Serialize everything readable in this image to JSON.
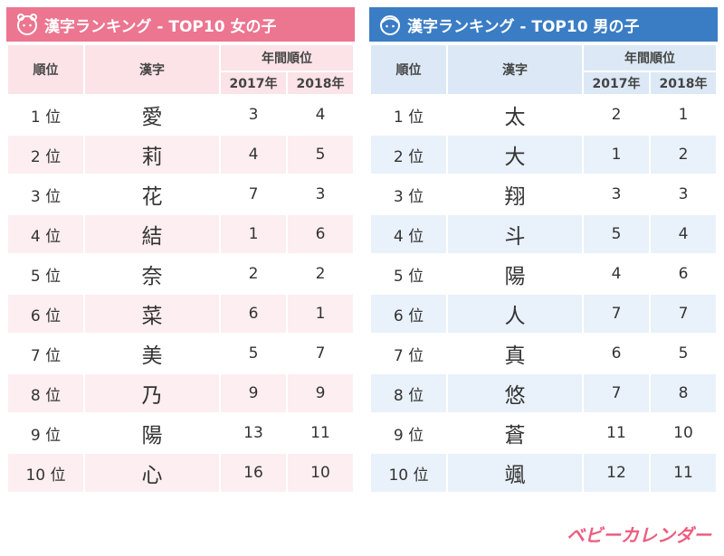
{
  "tables": [
    {
      "theme": "girl",
      "title": "漢字ランキング - TOP10 女の子",
      "headers": {
        "rank": "順位",
        "kanji": "漢字",
        "group": "年間順位",
        "y2017": "2017年",
        "y2018": "2018年"
      },
      "rows": [
        [
          "1 位",
          "愛",
          3,
          4
        ],
        [
          "2 位",
          "莉",
          4,
          5
        ],
        [
          "3 位",
          "花",
          7,
          3
        ],
        [
          "4 位",
          "結",
          1,
          6
        ],
        [
          "5 位",
          "奈",
          2,
          2
        ],
        [
          "6 位",
          "菜",
          6,
          1
        ],
        [
          "7 位",
          "美",
          5,
          7
        ],
        [
          "8 位",
          "乃",
          9,
          9
        ],
        [
          "9 位",
          "陽",
          13,
          11
        ],
        [
          "10 位",
          "心",
          16,
          10
        ]
      ]
    },
    {
      "theme": "boy",
      "title": "漢字ランキング - TOP10 男の子",
      "headers": {
        "rank": "順位",
        "kanji": "漢字",
        "group": "年間順位",
        "y2017": "2017年",
        "y2018": "2018年"
      },
      "rows": [
        [
          "1 位",
          "太",
          2,
          1
        ],
        [
          "2 位",
          "大",
          1,
          2
        ],
        [
          "3 位",
          "翔",
          3,
          3
        ],
        [
          "4 位",
          "斗",
          5,
          4
        ],
        [
          "5 位",
          "陽",
          4,
          6
        ],
        [
          "6 位",
          "人",
          7,
          7
        ],
        [
          "7 位",
          "真",
          6,
          5
        ],
        [
          "8 位",
          "悠",
          7,
          8
        ],
        [
          "9 位",
          "蒼",
          11,
          10
        ],
        [
          "10 位",
          "颯",
          12,
          11
        ]
      ]
    }
  ],
  "footer": "ベビーカレンダー"
}
